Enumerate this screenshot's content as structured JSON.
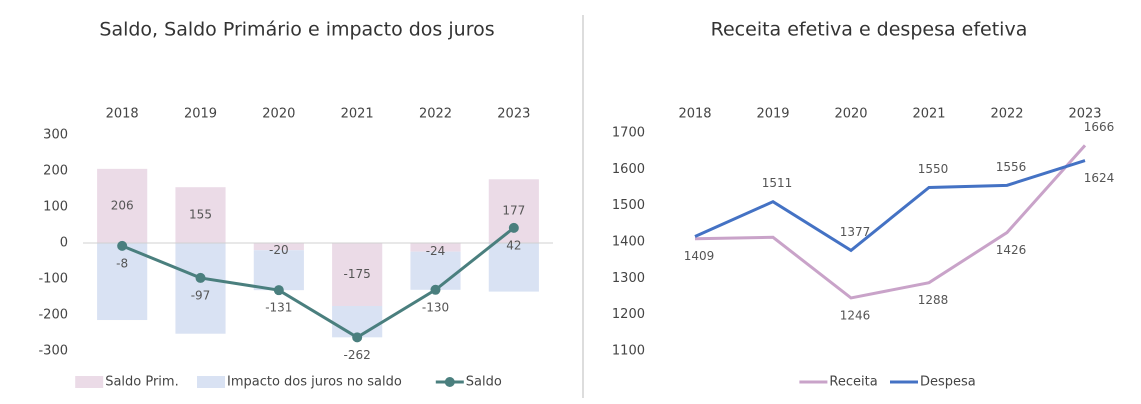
{
  "chart_data": [
    {
      "type": "bar",
      "title": "Saldo, Saldo Primário e impacto dos juros",
      "categories": [
        "2018",
        "2019",
        "2020",
        "2021",
        "2022",
        "2023"
      ],
      "series": [
        {
          "name": "Saldo Prim.",
          "color": "#ebdbe7",
          "values": [
            206,
            155,
            -20,
            -175,
            -24,
            177
          ],
          "labels": true
        },
        {
          "name": "Impacto dos juros no saldo",
          "color": "#d9e2f3",
          "values": [
            -214,
            -252,
            -111,
            -87,
            -106,
            -135
          ],
          "labels": false
        },
        {
          "name": "Saldo",
          "color": "#4a7f7e",
          "type": "line",
          "values": [
            -8,
            -97,
            -131,
            -262,
            -130,
            42
          ],
          "labels": true
        }
      ],
      "ylim": [
        -300,
        300
      ],
      "yticks": [
        -300,
        -200,
        -100,
        0,
        100,
        200,
        300
      ],
      "legend": "bottom"
    },
    {
      "type": "line",
      "title": "Receita efetiva e despesa efetiva",
      "categories": [
        "2018",
        "2019",
        "2020",
        "2021",
        "2022",
        "2023"
      ],
      "series": [
        {
          "name": "Receita",
          "color": "#c9a3c9",
          "values": [
            1409,
            1413,
            1246,
            1288,
            1426,
            1666
          ],
          "value_labels": [
            "1409",
            null,
            "1246",
            "1288",
            "1426",
            "1666"
          ]
        },
        {
          "name": "Despesa",
          "color": "#4472c4",
          "values": [
            1415,
            1511,
            1377,
            1550,
            1556,
            1624
          ],
          "value_labels": [
            null,
            "1511",
            "1377",
            "1550",
            "1556",
            "1624"
          ]
        }
      ],
      "ylim": [
        1100,
        1700
      ],
      "yticks": [
        1100,
        1200,
        1300,
        1400,
        1500,
        1600,
        1700
      ],
      "legend": "bottom"
    }
  ]
}
